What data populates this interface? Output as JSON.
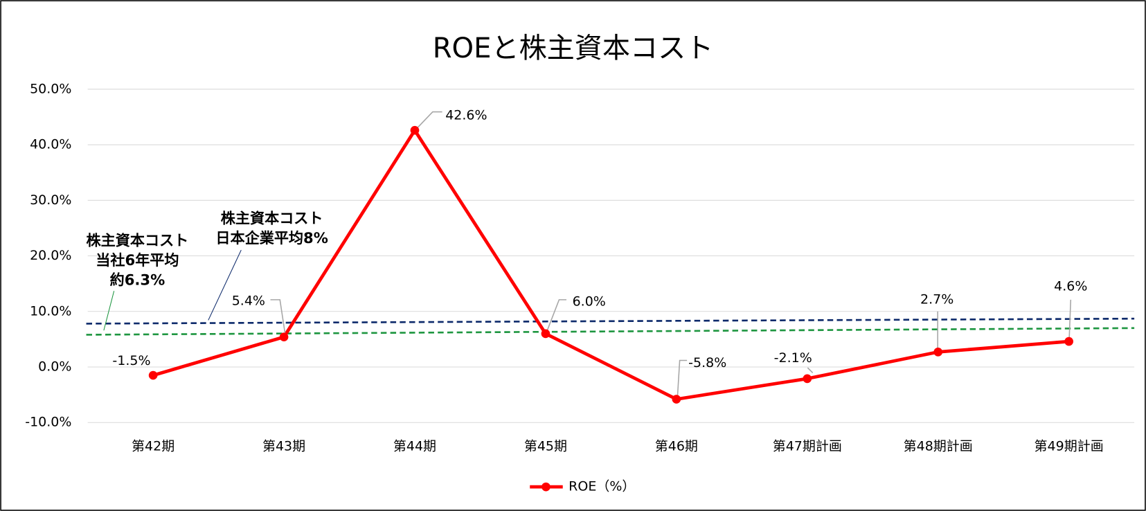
{
  "chart_data": {
    "type": "line",
    "title": "ROEと株主資本コスト",
    "categories": [
      "第42期",
      "第43期",
      "第44期",
      "第45期",
      "第46期",
      "第47期計画",
      "第48期計画",
      "第49期計画"
    ],
    "series": [
      {
        "name": "ROE（%）",
        "color": "#ff0000",
        "values": [
          -1.5,
          5.4,
          42.6,
          6.0,
          -5.8,
          -2.1,
          2.7,
          4.6
        ],
        "value_labels": [
          "-1.5%",
          "5.4%",
          "42.6%",
          "6.0%",
          "-5.8%",
          "-2.1%",
          "2.7%",
          "4.6%"
        ]
      }
    ],
    "ylim": [
      -10,
      50
    ],
    "yticks": [
      {
        "value": -10,
        "label": "-10.0%"
      },
      {
        "value": 0,
        "label": "0.0%"
      },
      {
        "value": 10,
        "label": "10.0%"
      },
      {
        "value": 20,
        "label": "20.0%"
      },
      {
        "value": 30,
        "label": "30.0%"
      },
      {
        "value": 40,
        "label": "40.0%"
      },
      {
        "value": 50,
        "label": "50.0%"
      }
    ],
    "grid": true,
    "legend": "bottom",
    "reference_lines": [
      {
        "label": [
          "株主資本コスト",
          "日本企業平均8%"
        ],
        "color": "#0d2a6b",
        "values": [
          7.8,
          8.7
        ]
      },
      {
        "label": [
          "株主資本コスト",
          "当社6年平均",
          "約6.3%"
        ],
        "color": "#1e9640",
        "values": [
          5.8,
          7.0
        ]
      }
    ]
  }
}
